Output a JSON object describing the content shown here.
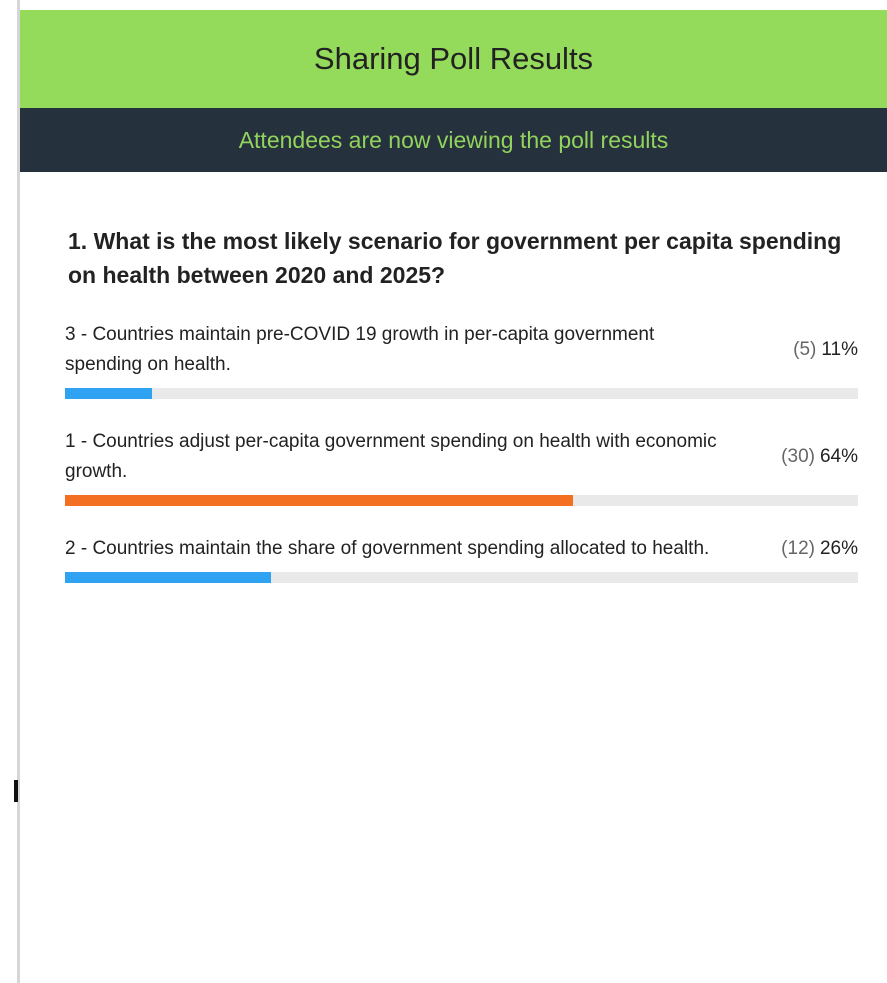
{
  "header": {
    "title": "Sharing Poll Results",
    "subtitle": "Attendees are now viewing the poll results"
  },
  "poll": {
    "question": "1. What is the most likely scenario for government per capita spending on health between 2020 and 2025?",
    "options": [
      {
        "text": "3 - Countries maintain pre-COVID 19 growth in per-capita government spending on health.",
        "count_label": "(5)",
        "value": 11,
        "value_label": "11%",
        "color": "#2fa3f2"
      },
      {
        "text": "1 - Countries adjust per-capita government spending on health with economic growth.",
        "count_label": "(30)",
        "value": 64,
        "value_label": "64%",
        "color": "#f36f22"
      },
      {
        "text": "2 - Countries maintain the share of government spending allocated to health.",
        "count_label": "(12)",
        "value": 26,
        "value_label": "26%",
        "color": "#2fa3f2"
      }
    ]
  }
}
